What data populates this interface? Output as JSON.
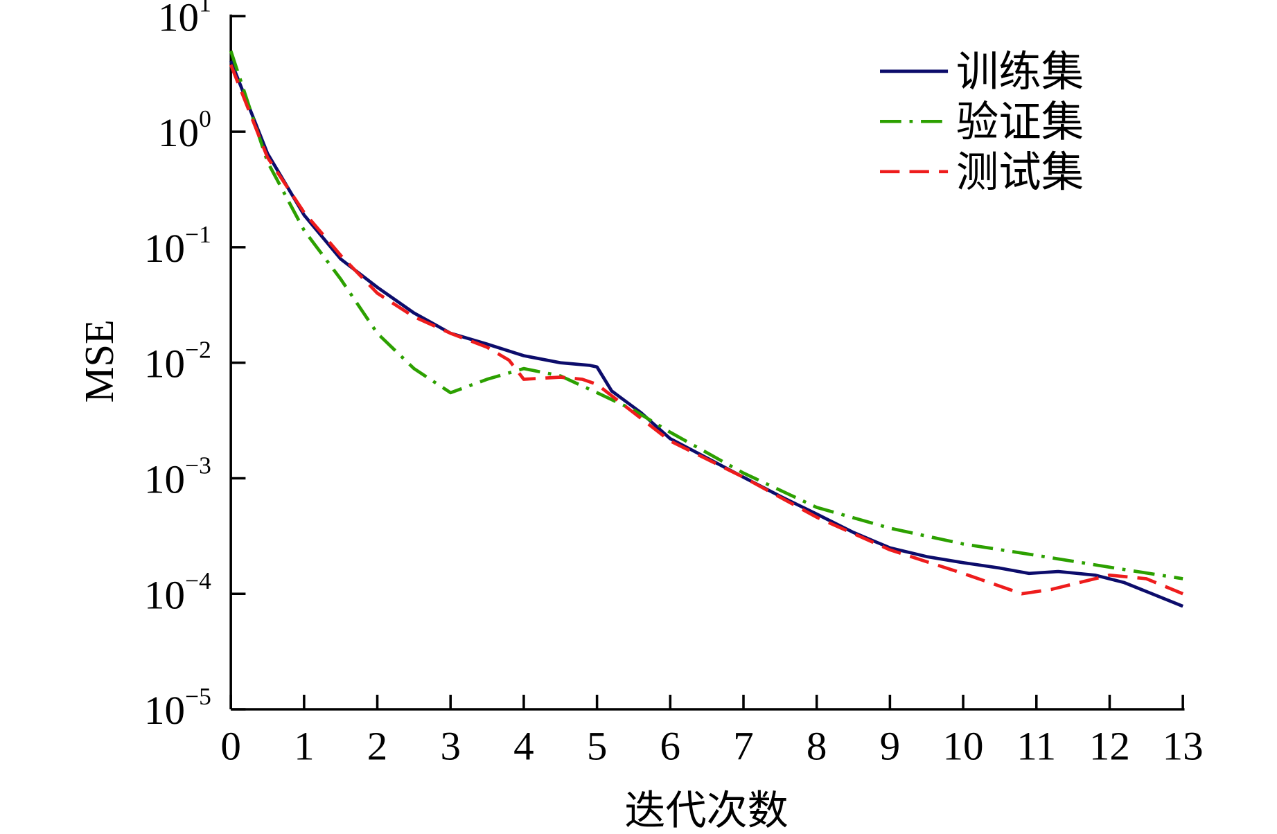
{
  "chart_data": {
    "type": "line",
    "title": "",
    "xlabel": "迭代次数",
    "ylabel": "MSE",
    "xlim": [
      0,
      13
    ],
    "ylim": [
      1e-05,
      10
    ],
    "yscale": "log",
    "grid": false,
    "legend_position": "top-right",
    "x_ticks": [
      "0",
      "1",
      "2",
      "3",
      "4",
      "5",
      "6",
      "7",
      "8",
      "9",
      "10",
      "11",
      "12",
      "13"
    ],
    "y_ticks": [
      {
        "base": "10",
        "exp": "1"
      },
      {
        "base": "10",
        "exp": "0"
      },
      {
        "base": "10",
        "exp": "−1"
      },
      {
        "base": "10",
        "exp": "−2"
      },
      {
        "base": "10",
        "exp": "−3"
      },
      {
        "base": "10",
        "exp": "−4"
      },
      {
        "base": "10",
        "exp": "−5"
      }
    ],
    "series": [
      {
        "name": "训练集",
        "color": "#0c0c6b",
        "style": "solid",
        "x": [
          0,
          0.5,
          1,
          1.5,
          2,
          2.5,
          3,
          3.5,
          4,
          4.5,
          4.9,
          5.0,
          5.2,
          5.6,
          6,
          6.5,
          7,
          7.5,
          8,
          8.5,
          9,
          9.5,
          10,
          10.5,
          10.9,
          11.3,
          11.8,
          12.2,
          13
        ],
        "y": [
          4.1,
          0.65,
          0.19,
          0.079,
          0.045,
          0.027,
          0.018,
          0.0145,
          0.0115,
          0.01,
          0.0095,
          0.0092,
          0.0057,
          0.0037,
          0.0022,
          0.0015,
          0.00102,
          0.0007,
          0.00049,
          0.00034,
          0.00025,
          0.00021,
          0.000186,
          0.000167,
          0.00015,
          0.000156,
          0.000145,
          0.000125,
          7.8e-05
        ]
      },
      {
        "name": "验证集",
        "color": "#2ca000",
        "style": "dashdot",
        "x": [
          0,
          0.5,
          1,
          1.5,
          2,
          2.5,
          3,
          3.5,
          4,
          4.5,
          5,
          5.5,
          6,
          7,
          8,
          9,
          10,
          11,
          12,
          13
        ],
        "y": [
          5.0,
          0.55,
          0.14,
          0.053,
          0.018,
          0.0089,
          0.0055,
          0.0072,
          0.0089,
          0.0077,
          0.0055,
          0.0039,
          0.0025,
          0.00111,
          0.00056,
          0.00037,
          0.00027,
          0.000215,
          0.00017,
          0.000135
        ]
      },
      {
        "name": "测试集",
        "color": "#ee1c1c",
        "style": "dashed",
        "x": [
          0,
          0.5,
          1,
          1.5,
          2,
          2.5,
          3,
          3.5,
          3.8,
          4,
          4.5,
          4.8,
          5,
          5.5,
          6,
          7,
          8,
          9,
          10,
          10.8,
          11.2,
          12,
          12.5,
          13
        ],
        "y": [
          3.8,
          0.6,
          0.2,
          0.085,
          0.04,
          0.025,
          0.018,
          0.0136,
          0.0105,
          0.0072,
          0.0075,
          0.0072,
          0.0065,
          0.0037,
          0.0021,
          0.00102,
          0.00046,
          0.00024,
          0.00015,
          0.0001,
          0.000109,
          0.000145,
          0.000135,
          0.0001
        ]
      }
    ]
  }
}
